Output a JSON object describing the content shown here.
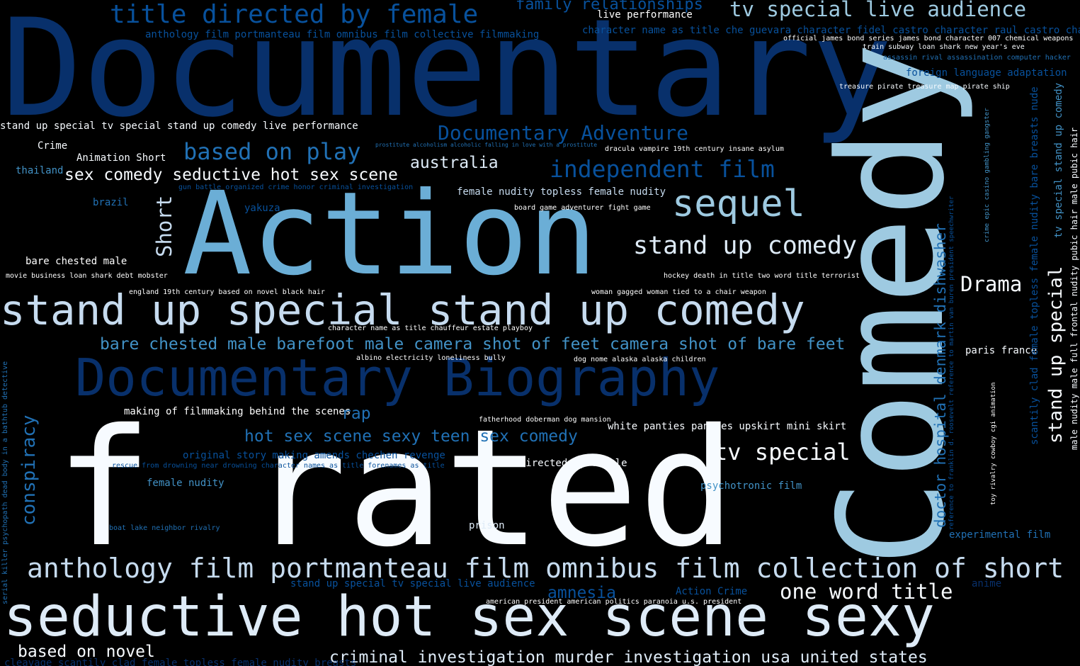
{
  "words": {
    "documentary": "Documentary",
    "action": "Action",
    "f_rated": "f rated",
    "comedy": "Comedy",
    "seductive_hot": "seductive hot sex scene sexy",
    "stand_up_special_comedy": "stand up special stand up comedy",
    "documentary_biography": "Documentary Biography",
    "anthology_long": "anthology film portmanteau film omnibus film collection of short fil",
    "title_directed_female": "title directed by female",
    "family_relationships": "family relationships",
    "live_performance": "live performance",
    "tv_special_live_audience": "tv special live audience",
    "anthology_collective": "anthology film portmanteau film omnibus film collective filmmaking",
    "character_name_che": "character name as title che guevara character fidel castro character raul castro cha",
    "james_bond": "official james bond series james bond character 007 chemical weapons",
    "train_subway": "train subway loan shark new year's eve",
    "assassin": "assassin rival assassination computer hacker",
    "foreign_language": "foreign language adaptation",
    "treasure_pirate": "treasure pirate treasure map pirate ship",
    "standup_tv_live_perf": "stand up special tv special stand up comedy live performance",
    "documentary_adventure": "Documentary Adventure",
    "crime": "Crime",
    "animation_short": "Animation Short",
    "based_on_play": "based on play",
    "prostitute": "prostitute alcoholism alcoholic falling in love with a prostitute",
    "dracula": "dracula vampire 19th century insane asylum",
    "thailand": "thailand",
    "sex_comedy": "sex comedy seductive hot sex scene",
    "australia": "australia",
    "independent_film": "independent film",
    "gun_battle": "gun battle organized crime honor criminal investigation",
    "female_nudity_topless": "female nudity topless female nudity",
    "brazil": "brazil",
    "yakuza": "yakuza",
    "board_game": "board game adventurer fight game",
    "sequel": "sequel",
    "short": "Short",
    "stand_up_comedy": "stand up comedy",
    "bare_chested": "bare chested male",
    "movie_business": "movie business loan shark debt mobster",
    "hockey_death": "hockey death in title two word title terrorist",
    "drama": "Drama",
    "england": "england 19th century based on novel black hair",
    "woman_gagged": "woman gagged woman tied to a chair weapon",
    "character_chauffeur": "character name as title chauffeur estate playboy",
    "bare_chested_barefoot": "bare chested male barefoot male camera shot of feet camera shot of bare feet",
    "paris_france": "paris france",
    "albino": "albino electricity loneliness bully",
    "dog_nome": "dog nome alaska alaska children",
    "making_of": "making of filmmaking behind the scenes",
    "rap": "rap",
    "fatherhood": "fatherhood doberman dog mansion",
    "white_panties": "white panties panties upskirt mini skirt",
    "hot_sex_teen": "hot sex scene sexy teen sex comedy",
    "original_story": "original story making amends chechen revenge",
    "tv_special": "tv special",
    "rescue_drowning": "rescue from drowning near drowning character names as title forenames as title",
    "title_co_directed": "title co directed by female",
    "female_nudity": "female nudity",
    "psychotronic": "psychotronic film",
    "boat_lake": "boat lake neighbor rivalry",
    "prison": "prison",
    "experimental": "experimental film",
    "standup_tv_live_audience": "stand up special tv special live audience",
    "amnesia": "amnesia",
    "action_crime": "Action Crime",
    "one_word_title": "one word title",
    "anime": "anime",
    "american_president": "american president american politics paranoia u.s. president",
    "based_on_novel": "based on novel",
    "criminal_investigation": "criminal investigation murder investigation usa united states",
    "cleavage": "cleavage scantily clad female topless female nudity breasts",
    "conspiracy": "conspiracy",
    "serial_killer": "serial killer psychopath dead body in a bathtub detective",
    "doctor_hospital": "doctor hospital denmark dishwasher",
    "reference_roosevelt": "reference to franklin d. roosevelt reference to martin van buren president speechwriter",
    "crime_epic": "crime epic casino gambling gangster",
    "scantily_clad": "scantily clad female topless female nudity bare breasts nude",
    "stand_up_special": "stand up special",
    "tv_special_stand_up_comedy": "tv special stand up comedy",
    "male_nudity": "male nudity male full frontal nudity pubic hair male pubic hair",
    "toy_rivalry": "toy rivalry cowboy cgi animation"
  },
  "colors": {
    "background": "#000000",
    "palette": [
      "#08306b",
      "#08519c",
      "#2171b5",
      "#4292c6",
      "#6baed6",
      "#9ecae1",
      "#c6dbef",
      "#deebf7",
      "#f7fbff"
    ]
  }
}
